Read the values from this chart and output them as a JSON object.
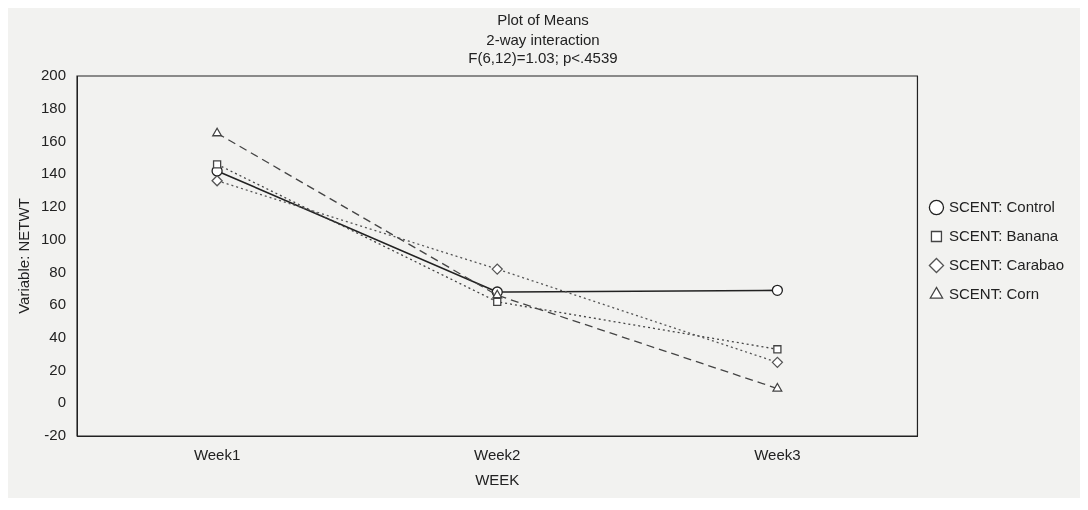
{
  "chart_data": {
    "type": "line",
    "title": "Plot of Means",
    "subtitle": "2-way interaction",
    "annotations": [
      "F(6,12)=1.03; p<.4539"
    ],
    "xlabel": "WEEK",
    "ylabel": "Variable: NETWT",
    "categories": [
      "Week1",
      "Week2",
      "Week3"
    ],
    "ylim": [
      -20,
      200
    ],
    "yticks": [
      -20,
      0,
      20,
      40,
      60,
      80,
      100,
      120,
      140,
      160,
      180,
      200
    ],
    "grid": false,
    "legend": "right",
    "series": [
      {
        "name": "SCENT: Control",
        "color": "#222222",
        "values": [
          142,
          68,
          69
        ],
        "marker": "circle",
        "line_style": "solid"
      },
      {
        "name": "SCENT: Banana",
        "color": "#444444",
        "values": [
          146,
          62,
          33
        ],
        "marker": "square",
        "line_style": "dotted"
      },
      {
        "name": "SCENT: Carabao",
        "color": "#555555",
        "values": [
          136,
          82,
          25
        ],
        "marker": "diamond",
        "line_style": "dotted"
      },
      {
        "name": "SCENT: Corn",
        "color": "#444444",
        "values": [
          165,
          66,
          9
        ],
        "marker": "triangle",
        "line_style": "dashed"
      }
    ]
  }
}
